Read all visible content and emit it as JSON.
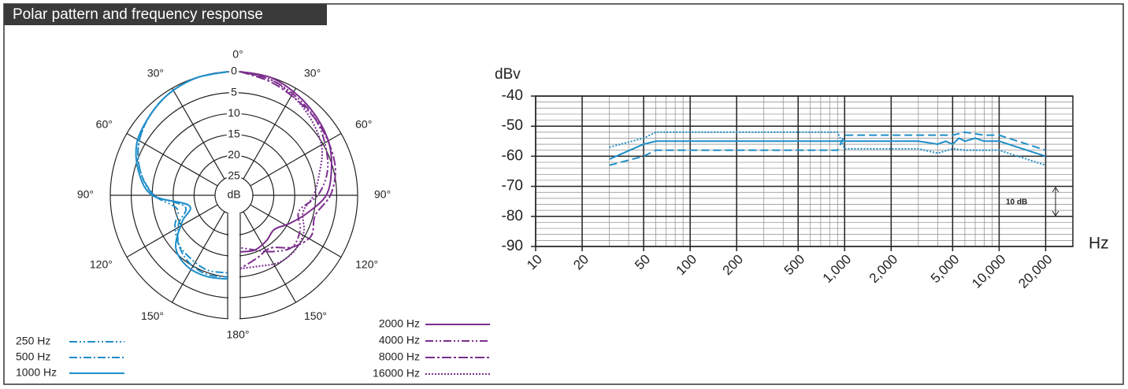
{
  "title": "Polar pattern and frequency response",
  "chart_data": [
    {
      "type": "polar",
      "r_label": "dB",
      "rlim": [
        0,
        25
      ],
      "rticks": [
        0,
        5,
        10,
        15,
        20,
        25
      ],
      "angle_ticks": [
        {
          "value": 0,
          "label": "0°"
        },
        {
          "value": 30,
          "label": "30°"
        },
        {
          "value": 60,
          "label": "60°"
        },
        {
          "value": 90,
          "label": "90°"
        },
        {
          "value": 120,
          "label": "120°"
        },
        {
          "value": 150,
          "label": "150°"
        },
        {
          "value": 180,
          "label": "180°"
        }
      ],
      "angles": [
        0,
        15,
        30,
        45,
        60,
        75,
        90,
        105,
        120,
        135,
        150,
        165,
        180
      ],
      "series": [
        {
          "name": "250 Hz",
          "side": "left",
          "color": "#1f8ec8",
          "dash": "10 3 2 3 2 3",
          "values": [
            0,
            0.5,
            1.5,
            3,
            5,
            8,
            12,
            17,
            15,
            13,
            12,
            11,
            11
          ]
        },
        {
          "name": "500 Hz",
          "side": "left",
          "color": "#1f8ec8",
          "dash": "10 3 2 3",
          "values": [
            0,
            0.5,
            1.5,
            3,
            5,
            8,
            12,
            19,
            16,
            13,
            11,
            10,
            10
          ]
        },
        {
          "name": "1000 Hz",
          "side": "left",
          "color": "#1f8ec8",
          "dash": "none",
          "values": [
            0,
            0.5,
            1.5,
            3,
            4.5,
            7.5,
            11.5,
            20,
            17,
            12,
            10,
            9.5,
            9.5
          ]
        },
        {
          "name": "2000 Hz",
          "side": "right",
          "color": "#7b2d8e",
          "dash": "none",
          "values": [
            0,
            0.5,
            2,
            3.5,
            5,
            7,
            9,
            13,
            16,
            18,
            17,
            16,
            16
          ]
        },
        {
          "name": "4000 Hz",
          "side": "right",
          "color": "#7b2d8e",
          "dash": "10 3 2 3 2 3",
          "values": [
            0,
            1,
            2.5,
            4,
            6,
            8,
            11,
            15,
            13,
            12,
            14,
            16,
            17
          ]
        },
        {
          "name": "8000 Hz",
          "side": "right",
          "color": "#7b2d8e",
          "dash": "12 3 3 3",
          "values": [
            0,
            1.5,
            3,
            4,
            5,
            6,
            8,
            11,
            10,
            12,
            15,
            14,
            12
          ]
        },
        {
          "name": "16000 Hz",
          "side": "right",
          "color": "#7b2d8e",
          "dash": "2 2",
          "values": [
            0,
            1,
            3,
            5,
            7,
            10,
            12,
            14,
            12,
            11,
            11,
            12,
            12
          ]
        }
      ]
    },
    {
      "type": "line",
      "xscale": "log",
      "ylabel": "dBv",
      "xlabel": "Hz",
      "annotation": "10 dB",
      "grid": true,
      "xlim": [
        10,
        30000
      ],
      "ylim": [
        -90,
        -40
      ],
      "xticks": [
        10,
        20,
        50,
        100,
        200,
        500,
        {
          "value": 1000,
          "label": "1,000"
        },
        {
          "value": 2000,
          "label": "2,000"
        },
        {
          "value": 5000,
          "label": "5,000"
        },
        {
          "value": 10000,
          "label": "10,000"
        },
        {
          "value": 20000,
          "label": "20,000"
        }
      ],
      "yticks": [
        -90,
        -80,
        -70,
        -60,
        -50,
        -40
      ],
      "x_minor_ticks": [
        30,
        40,
        60,
        70,
        80,
        90,
        300,
        400,
        600,
        700,
        800,
        900,
        3000,
        4000,
        6000,
        7000,
        8000,
        9000
      ],
      "y_minor_ticks": [
        -88,
        -86,
        -84,
        -82,
        -78,
        -76,
        -74,
        -72,
        -68,
        -66,
        -64,
        -62,
        -58,
        -56,
        -54,
        -52,
        -48,
        -46,
        -44,
        -42
      ],
      "series": [
        {
          "color": "#1f8ec8",
          "dash": "none",
          "x": [
            30,
            50,
            60,
            1000,
            3000,
            4000,
            4500,
            5000,
            5500,
            6000,
            7000,
            8000,
            10000,
            20000
          ],
          "values": [
            -61,
            -56,
            -55,
            -55,
            -55,
            -56,
            -55,
            -56,
            -54,
            -55,
            -54,
            -55,
            -55,
            -60
          ]
        },
        {
          "color": "#1f8ec8",
          "dash": "2 2",
          "x": [
            30,
            50,
            60,
            900,
            1000,
            3000,
            4000,
            5000,
            6000,
            8000,
            10000,
            20000
          ],
          "values": [
            -57,
            -54,
            -52,
            -52,
            -57.5,
            -57.5,
            -59,
            -57.5,
            -58,
            -58,
            -58,
            -63
          ]
        },
        {
          "color": "#1f8ec8",
          "dash": "10 5",
          "x": [
            30,
            50,
            60,
            900,
            1000,
            3000,
            5000,
            6000,
            8000,
            10000,
            20000
          ],
          "values": [
            -63,
            -60,
            -58,
            -58,
            -53,
            -53,
            -53,
            -52,
            -53,
            -53,
            -58
          ]
        }
      ]
    }
  ]
}
